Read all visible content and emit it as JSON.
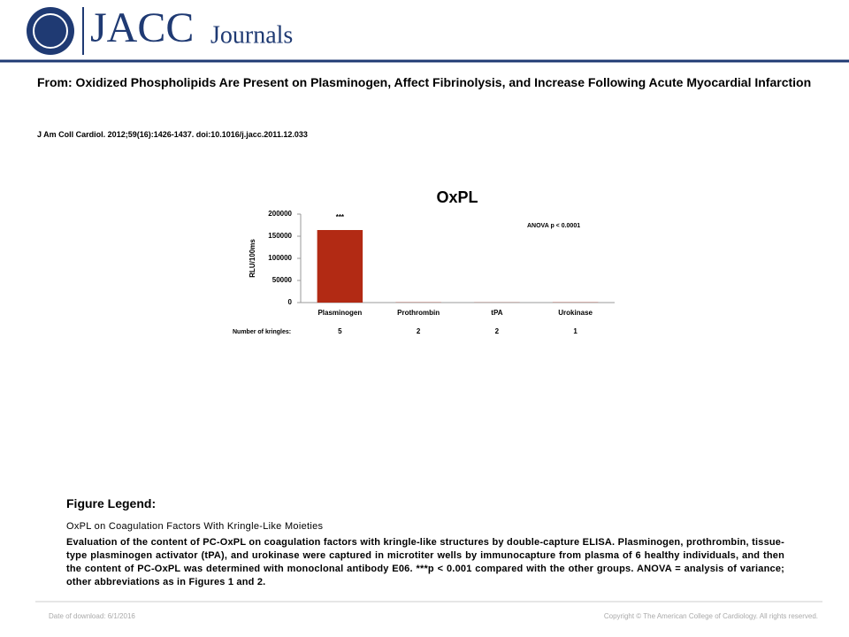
{
  "header": {
    "logo_text": "JACC",
    "logo_sub": "Journals",
    "title": "From: Oxidized Phospholipids Are Present on Plasminogen, Affect Fibrinolysis, and Increase Following Acute Myocardial Infarction",
    "citation": "J Am Coll Cardiol. 2012;59(16):1426-1437. doi:10.1016/j.jacc.2011.12.033"
  },
  "chart_data": {
    "type": "bar",
    "title": "OxPL",
    "y_label": "RLU/100ms",
    "categories": [
      "Plasminogen",
      "Prothrombin",
      "tPA",
      "Urokinase"
    ],
    "values": [
      164000,
      500,
      300,
      500
    ],
    "color": "#b22a14",
    "ylim": [
      0,
      200000
    ],
    "yticks": [
      0,
      50000,
      100000,
      150000,
      200000
    ],
    "grid": false,
    "annotations": [
      "***",
      "ANOVA  p < 0.0001"
    ],
    "kringles_label": "Number of kringles:",
    "kringles": [
      5,
      2,
      2,
      1
    ]
  },
  "legend": {
    "heading": "Figure Legend:",
    "subtitle": "OxPL on Coagulation Factors With Kringle-Like Moieties",
    "text": "Evaluation of the content of PC-OxPL on coagulation factors with kringle-like structures by double-capture ELISA. Plasminogen, prothrombin, tissue-type plasminogen activator (tPA), and urokinase were captured in microtiter wells by immunocapture from plasma of 6 healthy individuals, and then the content of PC-OxPL was determined with monoclonal antibody E06. ***p < 0.001 compared with the other groups. ANOVA = analysis of variance; other abbreviations as in Figures 1 and 2."
  },
  "footer": {
    "date": "Date of download:  6/1/2016",
    "copyright": "Copyright © The American College of Cardiology. All rights reserved."
  }
}
